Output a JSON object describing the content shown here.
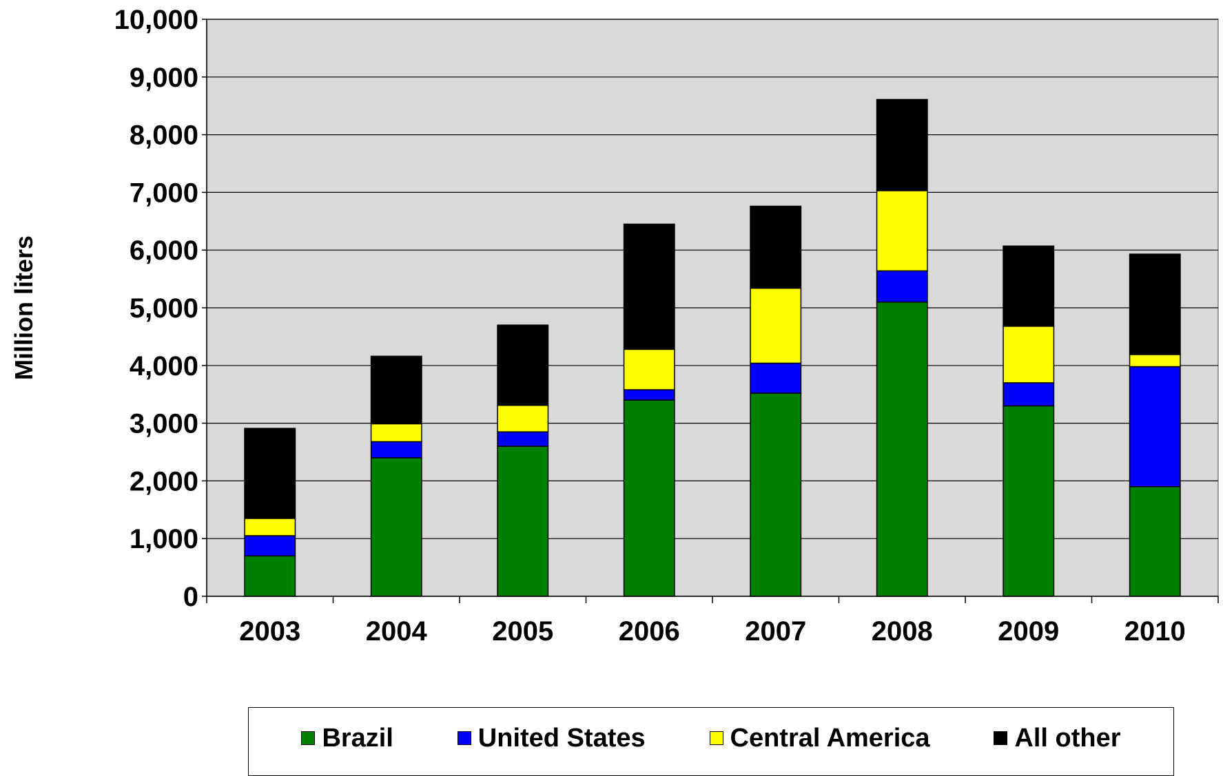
{
  "chart_data": {
    "type": "bar",
    "stacked": true,
    "ylabel": "Million liters",
    "xlabel": "",
    "ylim": [
      0,
      10000
    ],
    "yticks": [
      0,
      1000,
      2000,
      3000,
      4000,
      5000,
      6000,
      7000,
      8000,
      9000,
      10000
    ],
    "ytick_labels": [
      "0",
      "1,000",
      "2,000",
      "3,000",
      "4,000",
      "5,000",
      "6,000",
      "7,000",
      "8,000",
      "9,000",
      "10,000"
    ],
    "grid": true,
    "legend_position": "bottom",
    "plot_background": "#d9d9d9",
    "categories": [
      "2003",
      "2004",
      "2005",
      "2006",
      "2007",
      "2008",
      "2009",
      "2010"
    ],
    "series": [
      {
        "name": "Brazil",
        "color": "#008000",
        "values": [
          700,
          2400,
          2600,
          3400,
          3520,
          5100,
          3300,
          1900
        ]
      },
      {
        "name": "United States",
        "color": "#0000ff",
        "values": [
          350,
          280,
          250,
          180,
          520,
          540,
          400,
          2080
        ]
      },
      {
        "name": "Central America",
        "color": "#ffff00",
        "values": [
          300,
          310,
          460,
          700,
          1300,
          1390,
          980,
          210
        ]
      },
      {
        "name": "All other",
        "color": "#000000",
        "values": [
          1560,
          1170,
          1390,
          2170,
          1420,
          1580,
          1390,
          1740
        ]
      }
    ]
  }
}
